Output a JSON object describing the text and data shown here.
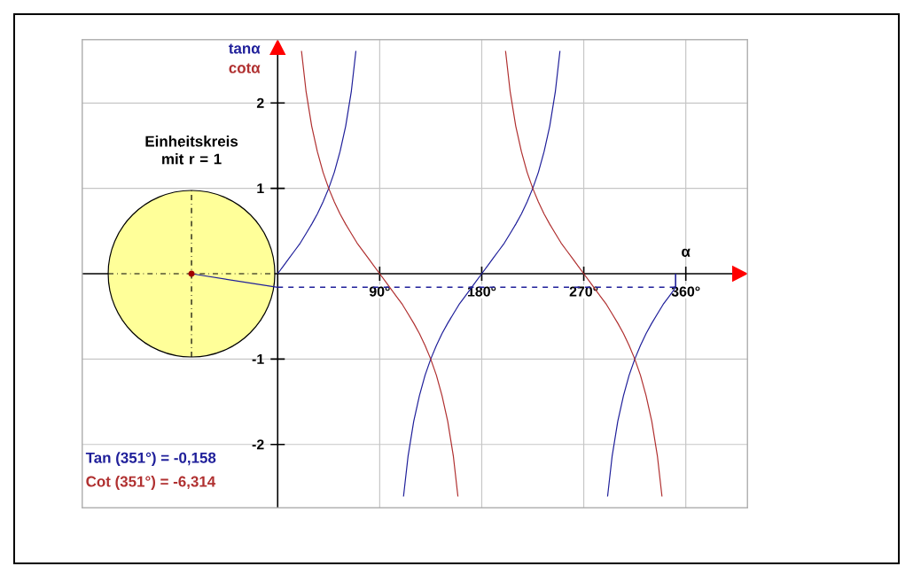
{
  "chart_data": {
    "type": "line",
    "xlabel": "α",
    "annotations": [
      "Einheitskreis mit r = 1",
      "Tan (351°) = -0,158",
      "Cot (351°) = -6,314"
    ],
    "series": [
      {
        "name": "tanα",
        "color": "#1f1f9a",
        "x": [
          0,
          5,
          10,
          15,
          20,
          25,
          30,
          35,
          40,
          45,
          50,
          55,
          60,
          65,
          69,
          90,
          111,
          115,
          120,
          125,
          130,
          135,
          140,
          145,
          150,
          155,
          160,
          165,
          170,
          175,
          180,
          185,
          190,
          195,
          200,
          205,
          210,
          215,
          220,
          225,
          230,
          235,
          240,
          245,
          249,
          270,
          291,
          295,
          300,
          305,
          310,
          315,
          320,
          325,
          330,
          335,
          340,
          345,
          350,
          351
        ],
        "values": [
          0,
          0.09,
          0.18,
          0.27,
          0.36,
          0.47,
          0.58,
          0.7,
          0.84,
          1,
          1.19,
          1.43,
          1.73,
          2.14,
          2.61,
          null,
          -2.61,
          -2.14,
          -1.73,
          -1.43,
          -1.19,
          -1,
          -0.84,
          -0.7,
          -0.58,
          -0.47,
          -0.36,
          -0.27,
          -0.18,
          -0.09,
          0,
          0.09,
          0.18,
          0.27,
          0.36,
          0.47,
          0.58,
          0.7,
          0.84,
          1,
          1.19,
          1.43,
          1.73,
          2.14,
          2.61,
          null,
          -2.61,
          -2.14,
          -1.73,
          -1.43,
          -1.19,
          -1,
          -0.84,
          -0.7,
          -0.58,
          -0.47,
          -0.36,
          -0.27,
          -0.18,
          -0.16
        ]
      },
      {
        "name": "cotα",
        "color": "#b03030",
        "x": [
          21,
          25,
          30,
          35,
          40,
          45,
          50,
          55,
          60,
          65,
          70,
          75,
          80,
          85,
          90,
          95,
          100,
          105,
          110,
          115,
          120,
          125,
          130,
          135,
          140,
          145,
          150,
          155,
          159,
          180,
          201,
          205,
          210,
          215,
          220,
          225,
          230,
          235,
          240,
          245,
          250,
          255,
          260,
          265,
          270,
          275,
          280,
          285,
          290,
          295,
          300,
          305,
          310,
          315,
          320,
          325,
          330,
          335,
          339
        ],
        "values": [
          2.61,
          2.14,
          1.73,
          1.43,
          1.19,
          1,
          0.84,
          0.7,
          0.58,
          0.47,
          0.36,
          0.27,
          0.18,
          0.09,
          0,
          -0.09,
          -0.18,
          -0.27,
          -0.36,
          -0.47,
          -0.58,
          -0.7,
          -0.84,
          -1,
          -1.19,
          -1.43,
          -1.73,
          -2.14,
          -2.61,
          null,
          2.61,
          2.14,
          1.73,
          1.43,
          1.19,
          1,
          0.84,
          0.7,
          0.58,
          0.47,
          0.36,
          0.27,
          0.18,
          0.09,
          0,
          -0.09,
          -0.18,
          -0.27,
          -0.36,
          -0.47,
          -0.58,
          -0.7,
          -0.84,
          -1,
          -1.19,
          -1.43,
          -1.73,
          -2.14,
          -2.61
        ]
      }
    ],
    "xlim": [
      -173,
      415
    ],
    "ylim": [
      -2.75,
      2.75
    ],
    "xticks": [
      {
        "value": 90,
        "label": "90°"
      },
      {
        "value": 180,
        "label": "180°"
      },
      {
        "value": 270,
        "label": "270°"
      },
      {
        "value": 360,
        "label": "360°"
      }
    ],
    "yticks": [
      -2,
      -1,
      1,
      2
    ],
    "ref_lines": [
      {
        "axis": "y",
        "value": -0.158,
        "color": "#1f1f9a",
        "line_style": "dashed"
      }
    ],
    "grid": true,
    "legend": "top left",
    "marker": "none",
    "line_style": "solid"
  }
}
